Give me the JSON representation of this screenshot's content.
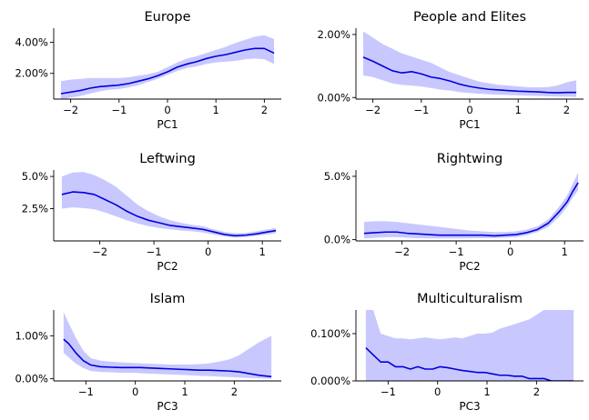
{
  "chart_data": [
    {
      "type": "line",
      "title": "Europe",
      "xlabel": "PC1",
      "xlim": [
        -2.35,
        2.35
      ],
      "ylim": [
        0.35,
        4.9
      ],
      "xticks": [
        -2,
        -1,
        0,
        1,
        2
      ],
      "xtick_labels": [
        "−2",
        "−1",
        "0",
        "1",
        "2"
      ],
      "yticks": [
        2.0,
        4.0
      ],
      "ytick_labels": [
        "2.00%",
        "4.00%"
      ],
      "series_color": "#0000dd",
      "band_color": "#c8c8ff",
      "series": [
        {
          "x": [
            -2.2,
            -2.0,
            -1.8,
            -1.6,
            -1.4,
            -1.2,
            -1.0,
            -0.8,
            -0.6,
            -0.4,
            -0.2,
            0.0,
            0.2,
            0.4,
            0.6,
            0.8,
            1.0,
            1.2,
            1.4,
            1.6,
            1.8,
            2.0,
            2.2
          ],
          "y": [
            0.7,
            0.8,
            0.9,
            1.05,
            1.15,
            1.2,
            1.25,
            1.35,
            1.5,
            1.65,
            1.85,
            2.1,
            2.4,
            2.6,
            2.75,
            2.95,
            3.1,
            3.2,
            3.35,
            3.5,
            3.6,
            3.6,
            3.3
          ],
          "lower": [
            0.3,
            0.45,
            0.55,
            0.7,
            0.85,
            0.95,
            1.0,
            1.1,
            1.25,
            1.45,
            1.65,
            1.9,
            2.15,
            2.35,
            2.45,
            2.6,
            2.7,
            2.75,
            2.8,
            2.9,
            2.95,
            2.9,
            2.6
          ],
          "upper": [
            1.5,
            1.6,
            1.65,
            1.7,
            1.7,
            1.7,
            1.7,
            1.75,
            1.85,
            1.95,
            2.1,
            2.4,
            2.7,
            2.95,
            3.1,
            3.3,
            3.5,
            3.7,
            3.95,
            4.15,
            4.35,
            4.45,
            4.2
          ]
        }
      ]
    },
    {
      "type": "line",
      "title": "People and Elites",
      "xlabel": "PC1",
      "xlim": [
        -2.35,
        2.35
      ],
      "ylim": [
        -0.05,
        2.2
      ],
      "xticks": [
        -2,
        -1,
        0,
        1,
        2
      ],
      "xtick_labels": [
        "−2",
        "−1",
        "0",
        "1",
        "2"
      ],
      "yticks": [
        0.0,
        2.0
      ],
      "ytick_labels": [
        "0.00%",
        "2.00%"
      ],
      "series_color": "#0000dd",
      "band_color": "#c8c8ff",
      "series": [
        {
          "x": [
            -2.2,
            -2.0,
            -1.8,
            -1.6,
            -1.4,
            -1.2,
            -1.0,
            -0.8,
            -0.6,
            -0.4,
            -0.2,
            0.0,
            0.2,
            0.4,
            0.6,
            0.8,
            1.0,
            1.2,
            1.4,
            1.6,
            1.8,
            2.0,
            2.2
          ],
          "y": [
            1.28,
            1.15,
            1.0,
            0.85,
            0.78,
            0.82,
            0.75,
            0.65,
            0.6,
            0.52,
            0.42,
            0.35,
            0.3,
            0.26,
            0.24,
            0.22,
            0.2,
            0.19,
            0.18,
            0.16,
            0.15,
            0.16,
            0.16
          ],
          "lower": [
            0.7,
            0.65,
            0.55,
            0.45,
            0.4,
            0.38,
            0.35,
            0.3,
            0.25,
            0.22,
            0.17,
            0.14,
            0.12,
            0.1,
            0.09,
            0.08,
            0.07,
            0.06,
            0.05,
            0.04,
            0.03,
            0.03,
            0.02
          ],
          "upper": [
            2.1,
            1.9,
            1.7,
            1.55,
            1.4,
            1.3,
            1.2,
            1.1,
            0.95,
            0.8,
            0.7,
            0.6,
            0.5,
            0.45,
            0.4,
            0.38,
            0.35,
            0.33,
            0.32,
            0.33,
            0.38,
            0.48,
            0.55
          ]
        }
      ]
    },
    {
      "type": "line",
      "title": "Leftwing",
      "xlabel": "PC2",
      "xlim": [
        -2.85,
        1.35
      ],
      "ylim": [
        0.0,
        5.5
      ],
      "xticks": [
        -2,
        -1,
        0,
        1
      ],
      "xtick_labels": [
        "−2",
        "−1",
        "0",
        "1"
      ],
      "yticks": [
        2.5,
        5.0
      ],
      "ytick_labels": [
        "2.5%",
        "5.0%"
      ],
      "series_color": "#0000dd",
      "band_color": "#c8c8ff",
      "series": [
        {
          "x": [
            -2.7,
            -2.5,
            -2.3,
            -2.1,
            -1.9,
            -1.7,
            -1.5,
            -1.3,
            -1.1,
            -0.9,
            -0.7,
            -0.5,
            -0.3,
            -0.1,
            0.1,
            0.3,
            0.5,
            0.7,
            0.9,
            1.1,
            1.25
          ],
          "y": [
            3.6,
            3.8,
            3.75,
            3.6,
            3.2,
            2.8,
            2.3,
            1.9,
            1.6,
            1.4,
            1.2,
            1.1,
            1.0,
            0.9,
            0.7,
            0.5,
            0.4,
            0.45,
            0.55,
            0.7,
            0.8
          ],
          "lower": [
            2.5,
            2.6,
            2.55,
            2.45,
            2.2,
            1.9,
            1.6,
            1.35,
            1.15,
            1.0,
            0.9,
            0.8,
            0.75,
            0.65,
            0.5,
            0.35,
            0.25,
            0.3,
            0.4,
            0.5,
            0.6
          ],
          "upper": [
            5.0,
            5.3,
            5.35,
            5.1,
            4.7,
            4.2,
            3.5,
            2.8,
            2.3,
            1.9,
            1.6,
            1.4,
            1.25,
            1.15,
            0.9,
            0.7,
            0.6,
            0.62,
            0.75,
            0.9,
            1.0
          ]
        }
      ]
    },
    {
      "type": "line",
      "title": "Rightwing",
      "xlabel": "PC2",
      "xlim": [
        -2.85,
        1.35
      ],
      "ylim": [
        -0.1,
        5.5
      ],
      "xticks": [
        -2,
        -1,
        0,
        1
      ],
      "xtick_labels": [
        "−2",
        "−1",
        "0",
        "1"
      ],
      "yticks": [
        0.0,
        5.0
      ],
      "ytick_labels": [
        "0.0%",
        "5.0%"
      ],
      "series_color": "#0000dd",
      "band_color": "#c8c8ff",
      "series": [
        {
          "x": [
            -2.7,
            -2.5,
            -2.3,
            -2.1,
            -1.9,
            -1.7,
            -1.5,
            -1.3,
            -1.1,
            -0.9,
            -0.7,
            -0.5,
            -0.3,
            -0.1,
            0.1,
            0.3,
            0.5,
            0.7,
            0.9,
            1.05,
            1.15,
            1.25
          ],
          "y": [
            0.5,
            0.55,
            0.6,
            0.6,
            0.5,
            0.45,
            0.4,
            0.35,
            0.35,
            0.35,
            0.35,
            0.35,
            0.3,
            0.35,
            0.4,
            0.55,
            0.8,
            1.3,
            2.2,
            3.0,
            3.8,
            4.5
          ],
          "lower": [
            0.1,
            0.15,
            0.2,
            0.2,
            0.15,
            0.12,
            0.1,
            0.1,
            0.1,
            0.1,
            0.12,
            0.12,
            0.12,
            0.15,
            0.2,
            0.35,
            0.6,
            1.0,
            1.8,
            2.6,
            3.3,
            3.9
          ],
          "upper": [
            1.4,
            1.45,
            1.45,
            1.4,
            1.3,
            1.2,
            1.1,
            1.0,
            0.9,
            0.8,
            0.7,
            0.65,
            0.6,
            0.6,
            0.65,
            0.8,
            1.05,
            1.6,
            2.6,
            3.5,
            4.4,
            5.3
          ]
        }
      ]
    },
    {
      "type": "line",
      "title": "Islam",
      "xlabel": "PC3",
      "xlim": [
        -1.65,
        2.95
      ],
      "ylim": [
        -0.05,
        1.6
      ],
      "xticks": [
        -1,
        0,
        1,
        2
      ],
      "xtick_labels": [
        "−1",
        "0",
        "1",
        "2"
      ],
      "yticks": [
        0.0,
        1.0
      ],
      "ytick_labels": [
        "0.00%",
        "1.00%"
      ],
      "series_color": "#0000dd",
      "band_color": "#c8c8ff",
      "series": [
        {
          "x": [
            -1.45,
            -1.35,
            -1.2,
            -1.05,
            -0.9,
            -0.7,
            -0.5,
            -0.3,
            -0.1,
            0.1,
            0.3,
            0.5,
            0.7,
            0.9,
            1.1,
            1.3,
            1.5,
            1.7,
            1.9,
            2.1,
            2.3,
            2.5,
            2.75
          ],
          "y": [
            0.92,
            0.82,
            0.6,
            0.42,
            0.32,
            0.28,
            0.27,
            0.26,
            0.26,
            0.26,
            0.25,
            0.24,
            0.23,
            0.22,
            0.21,
            0.2,
            0.2,
            0.19,
            0.18,
            0.16,
            0.12,
            0.08,
            0.05
          ],
          "lower": [
            0.6,
            0.5,
            0.35,
            0.25,
            0.18,
            0.16,
            0.15,
            0.14,
            0.14,
            0.13,
            0.12,
            0.11,
            0.1,
            0.09,
            0.08,
            0.07,
            0.06,
            0.05,
            0.04,
            0.03,
            0.02,
            0.01,
            0.0
          ],
          "upper": [
            1.55,
            1.3,
            0.95,
            0.65,
            0.48,
            0.42,
            0.4,
            0.38,
            0.37,
            0.36,
            0.35,
            0.34,
            0.33,
            0.33,
            0.33,
            0.34,
            0.36,
            0.4,
            0.45,
            0.55,
            0.7,
            0.85,
            1.0
          ]
        }
      ]
    },
    {
      "type": "line",
      "title": "Multiculturalism",
      "xlabel": "PC3",
      "xlim": [
        -1.65,
        2.95
      ],
      "ylim": [
        0.0,
        0.15
      ],
      "xticks": [
        -1,
        0,
        1,
        2
      ],
      "xtick_labels": [
        "−1",
        "0",
        "1",
        "2"
      ],
      "yticks": [
        0.0,
        0.1
      ],
      "ytick_labels": [
        "0.000%",
        "0.100%"
      ],
      "series_color": "#0000dd",
      "band_color": "#c8c8ff",
      "series": [
        {
          "x": [
            -1.45,
            -1.3,
            -1.15,
            -1.0,
            -0.85,
            -0.7,
            -0.55,
            -0.4,
            -0.25,
            -0.1,
            0.05,
            0.2,
            0.35,
            0.5,
            0.65,
            0.8,
            0.95,
            1.1,
            1.25,
            1.4,
            1.55,
            1.7,
            1.85,
            2.0,
            2.15,
            2.3,
            2.45,
            2.6,
            2.75
          ],
          "y": [
            0.07,
            0.055,
            0.04,
            0.04,
            0.03,
            0.03,
            0.025,
            0.03,
            0.025,
            0.025,
            0.03,
            0.028,
            0.025,
            0.022,
            0.02,
            0.018,
            0.018,
            0.015,
            0.012,
            0.012,
            0.01,
            0.01,
            0.005,
            0.005,
            0.005,
            0.0,
            0.0,
            0.0,
            0.0
          ],
          "lower": [
            0.0,
            0.0,
            0.0,
            0.0,
            0.0,
            0.0,
            0.0,
            0.0,
            0.0,
            0.0,
            0.0,
            0.0,
            0.0,
            0.0,
            0.0,
            0.0,
            0.0,
            0.0,
            0.0,
            0.0,
            0.0,
            0.0,
            0.0,
            0.0,
            0.0,
            0.0,
            0.0,
            0.0,
            0.0
          ],
          "upper": [
            0.15,
            0.15,
            0.1,
            0.095,
            0.09,
            0.09,
            0.088,
            0.09,
            0.092,
            0.09,
            0.088,
            0.09,
            0.092,
            0.09,
            0.095,
            0.1,
            0.1,
            0.102,
            0.11,
            0.115,
            0.12,
            0.125,
            0.13,
            0.14,
            0.15,
            0.15,
            0.15,
            0.15,
            0.15
          ]
        }
      ]
    }
  ]
}
